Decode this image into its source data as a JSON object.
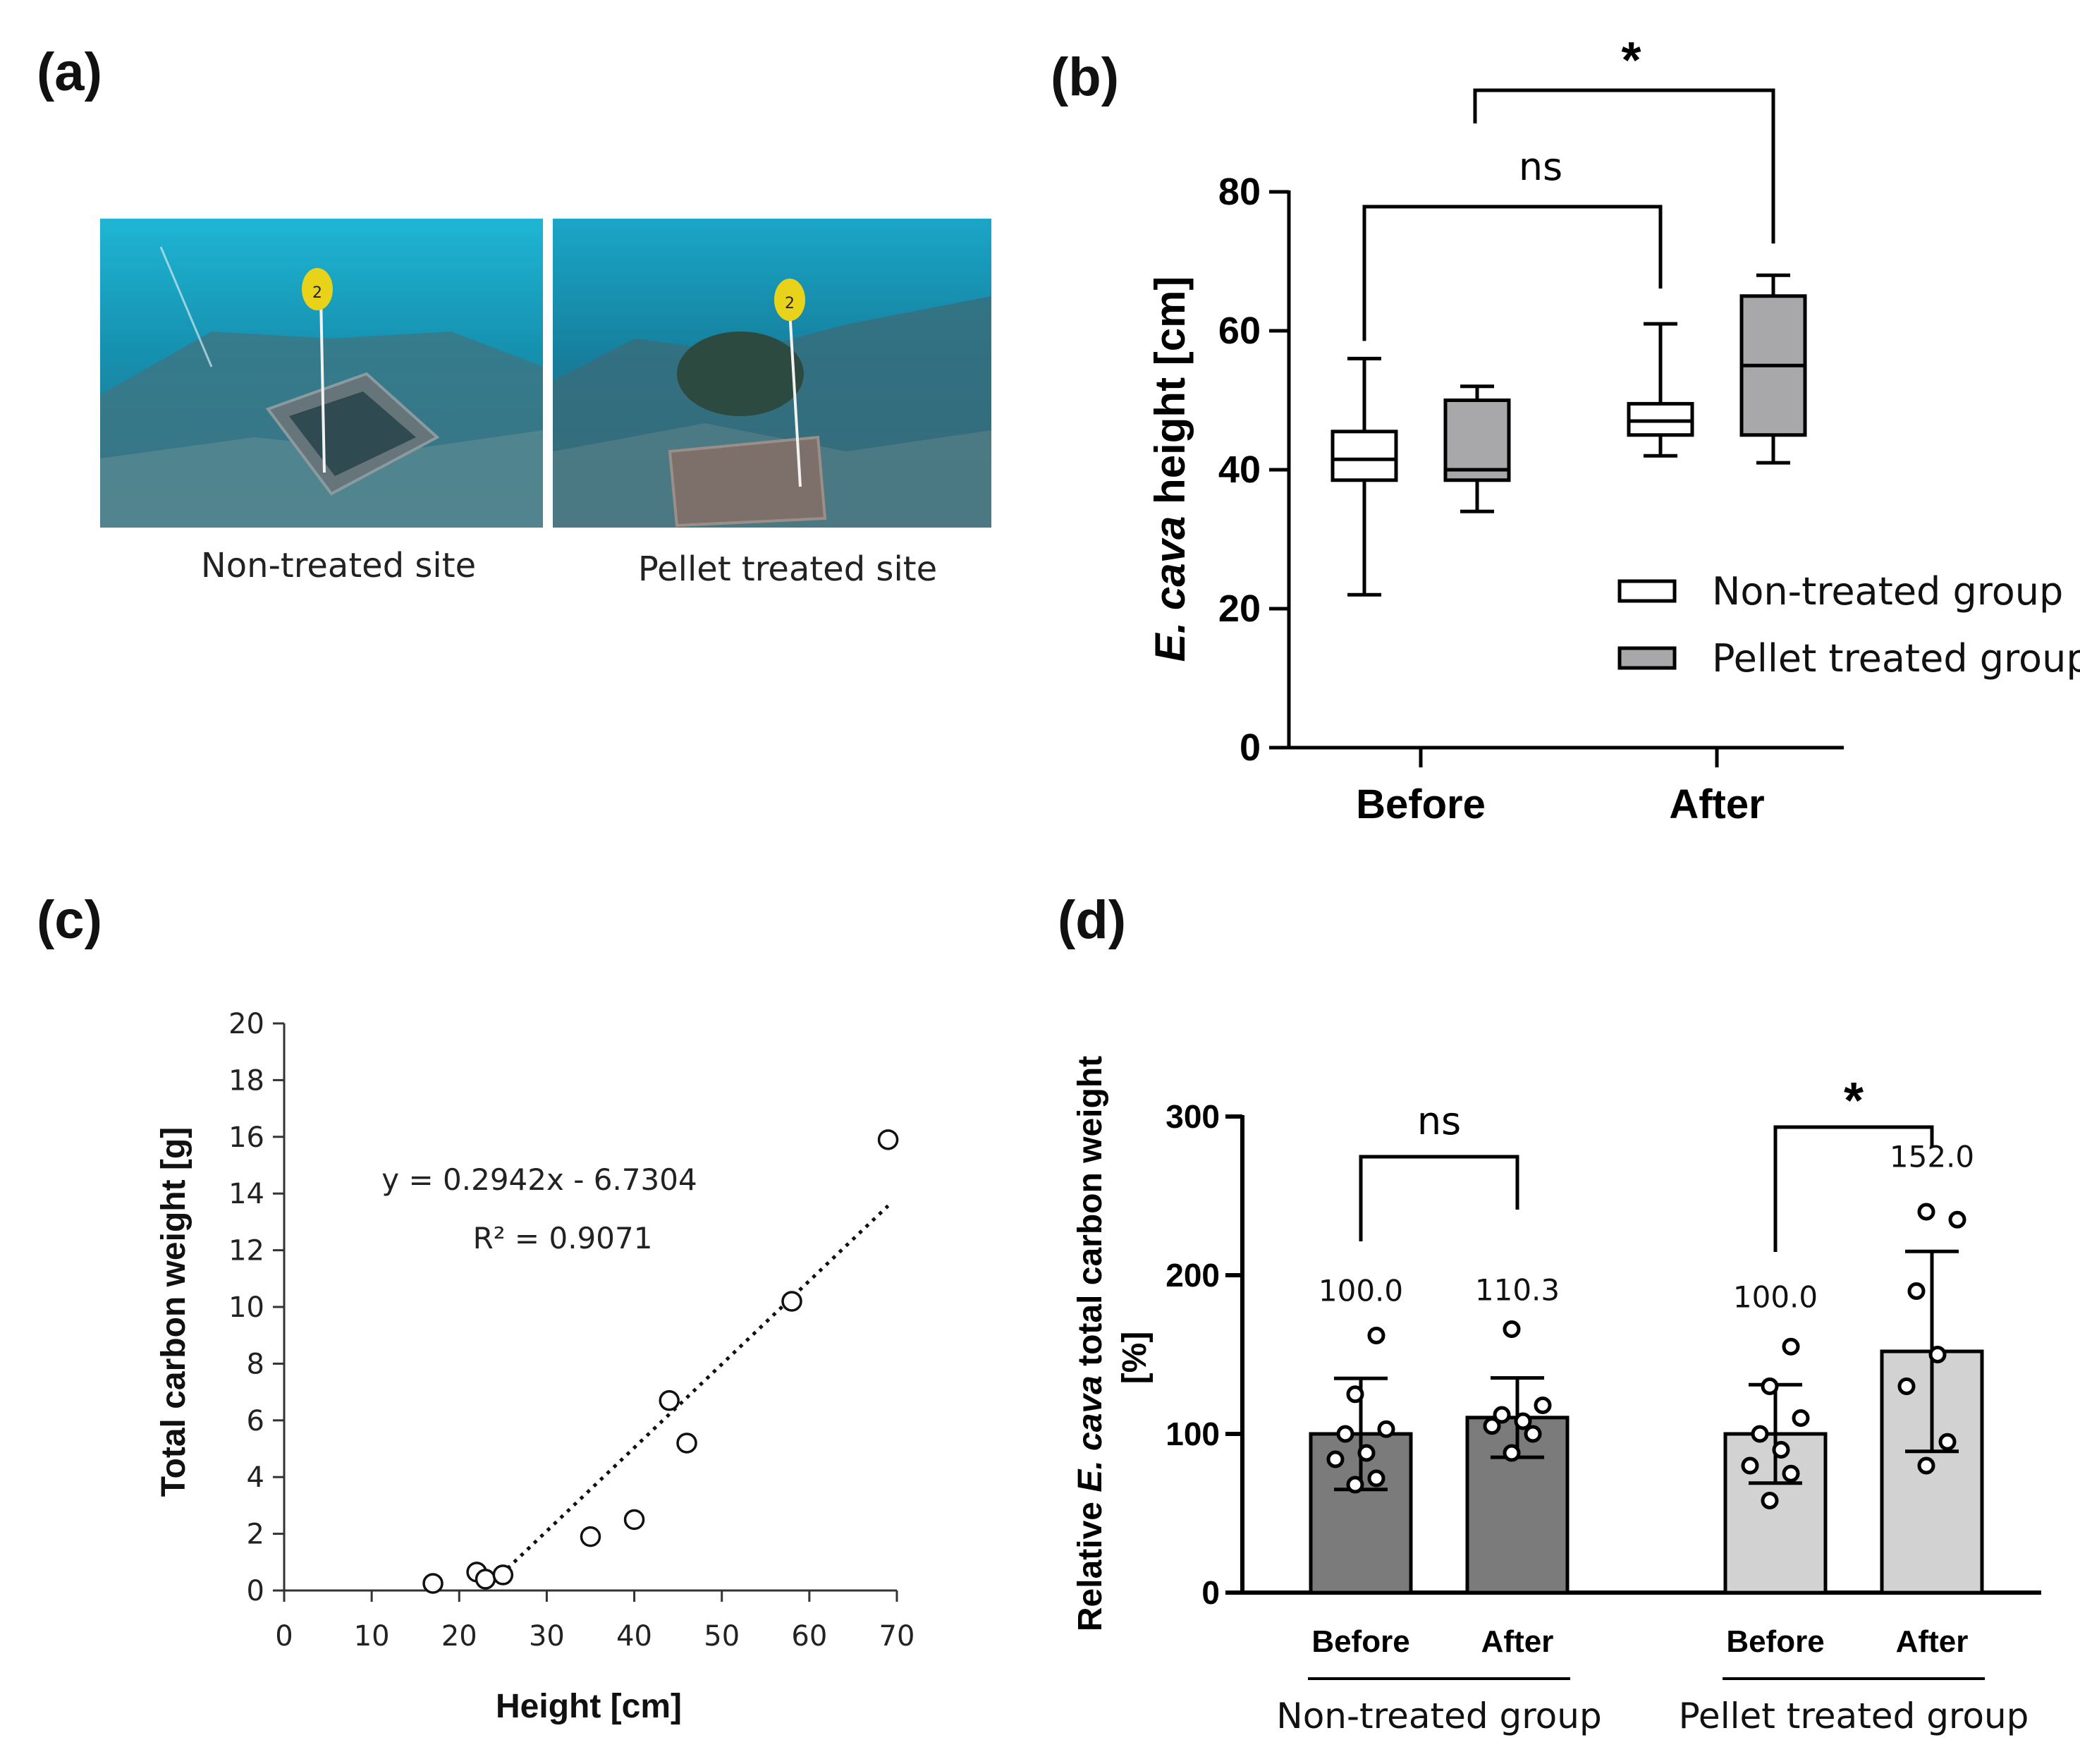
{
  "panel_labels": [
    "(a)",
    "(b)",
    "(c)",
    "(d)"
  ],
  "panel_a": {
    "photos": [
      {
        "caption": "Non-treated site",
        "buoy_number": "2"
      },
      {
        "caption": "Pellet treated site",
        "buoy_number": "2"
      }
    ]
  },
  "chart_data": [
    {
      "type": "box",
      "panel": "(b)",
      "ylabel_italic": "E. cava",
      "ylabel_rest": " height [cm]",
      "ylim": [
        0,
        80
      ],
      "yticks": [
        0,
        20,
        40,
        60,
        80
      ],
      "categories": [
        "Before",
        "After"
      ],
      "legend_position": "bottom-right",
      "series": [
        {
          "name": "Non-treated group",
          "color": "#ffffff",
          "boxes": [
            {
              "min": 22,
              "q1": 38.5,
              "median": 41.5,
              "q3": 45.5,
              "max": 56
            },
            {
              "min": 42,
              "q1": 45,
              "median": 47,
              "q3": 49.5,
              "max": 61
            }
          ]
        },
        {
          "name": "Pellet treated group",
          "color": "#a8a8aa",
          "boxes": [
            {
              "min": 34,
              "q1": 38.5,
              "median": 40,
              "q3": 50,
              "max": 52
            },
            {
              "min": 41,
              "q1": 45,
              "median": 55,
              "q3": 65,
              "max": 68
            }
          ]
        }
      ],
      "significance": [
        {
          "label": "ns",
          "from": "Non-treated group Before",
          "to": "Non-treated group After"
        },
        {
          "label": "*",
          "from": "Pellet treated group Before",
          "to": "Pellet treated group After"
        }
      ]
    },
    {
      "type": "scatter",
      "panel": "(c)",
      "xlabel": "Height [cm]",
      "ylabel": "Total carbon weight [g]",
      "xlim": [
        0,
        70
      ],
      "ylim": [
        0,
        20
      ],
      "xticks": [
        0,
        10,
        20,
        30,
        40,
        50,
        60,
        70
      ],
      "yticks": [
        0,
        2,
        4,
        6,
        8,
        10,
        12,
        14,
        16,
        18,
        20
      ],
      "points": [
        {
          "x": 17,
          "y": 0.25
        },
        {
          "x": 22,
          "y": 0.65
        },
        {
          "x": 23,
          "y": 0.4
        },
        {
          "x": 25,
          "y": 0.55
        },
        {
          "x": 35,
          "y": 1.9
        },
        {
          "x": 40,
          "y": 2.5
        },
        {
          "x": 44,
          "y": 6.7
        },
        {
          "x": 46,
          "y": 5.2
        },
        {
          "x": 58,
          "y": 10.2
        },
        {
          "x": 69,
          "y": 15.9
        }
      ],
      "trendline": {
        "slope": 0.2942,
        "intercept": -6.7304,
        "x_range": [
          24,
          69
        ]
      },
      "equation": "y = 0.2942x - 6.7304",
      "r_squared": "R² = 0.9071"
    },
    {
      "type": "bar",
      "panel": "(d)",
      "ylabel_pre": "Relative ",
      "ylabel_italic": "E. cava",
      "ylabel_post": " total carbon weight",
      "ylabel_line2": "[%]",
      "ylim": [
        0,
        300
      ],
      "yticks": [
        0,
        100,
        200,
        300
      ],
      "groups": [
        {
          "name": "Non-treated group",
          "color": "#7b7b7b",
          "bars": [
            {
              "label": "Before",
              "value": 100.0,
              "value_label": "100.0",
              "sd": 35,
              "points": [
                68,
                72,
                84,
                88,
                100,
                103,
                125,
                162
              ]
            },
            {
              "label": "After",
              "value": 110.3,
              "value_label": "110.3",
              "sd": 25,
              "points": [
                88,
                100,
                105,
                108,
                112,
                118,
                166
              ]
            }
          ],
          "significance": "ns"
        },
        {
          "name": "Pellet treated group",
          "color": "#d2d2d2",
          "bars": [
            {
              "label": "Before",
              "value": 100.0,
              "value_label": "100.0",
              "sd": 31,
              "points": [
                58,
                75,
                80,
                90,
                100,
                110,
                130,
                155
              ]
            },
            {
              "label": "After",
              "value": 152.0,
              "value_label": "152.0",
              "sd": 63,
              "points": [
                80,
                95,
                130,
                150,
                190,
                235,
                240
              ]
            }
          ],
          "significance": "*"
        }
      ]
    }
  ]
}
